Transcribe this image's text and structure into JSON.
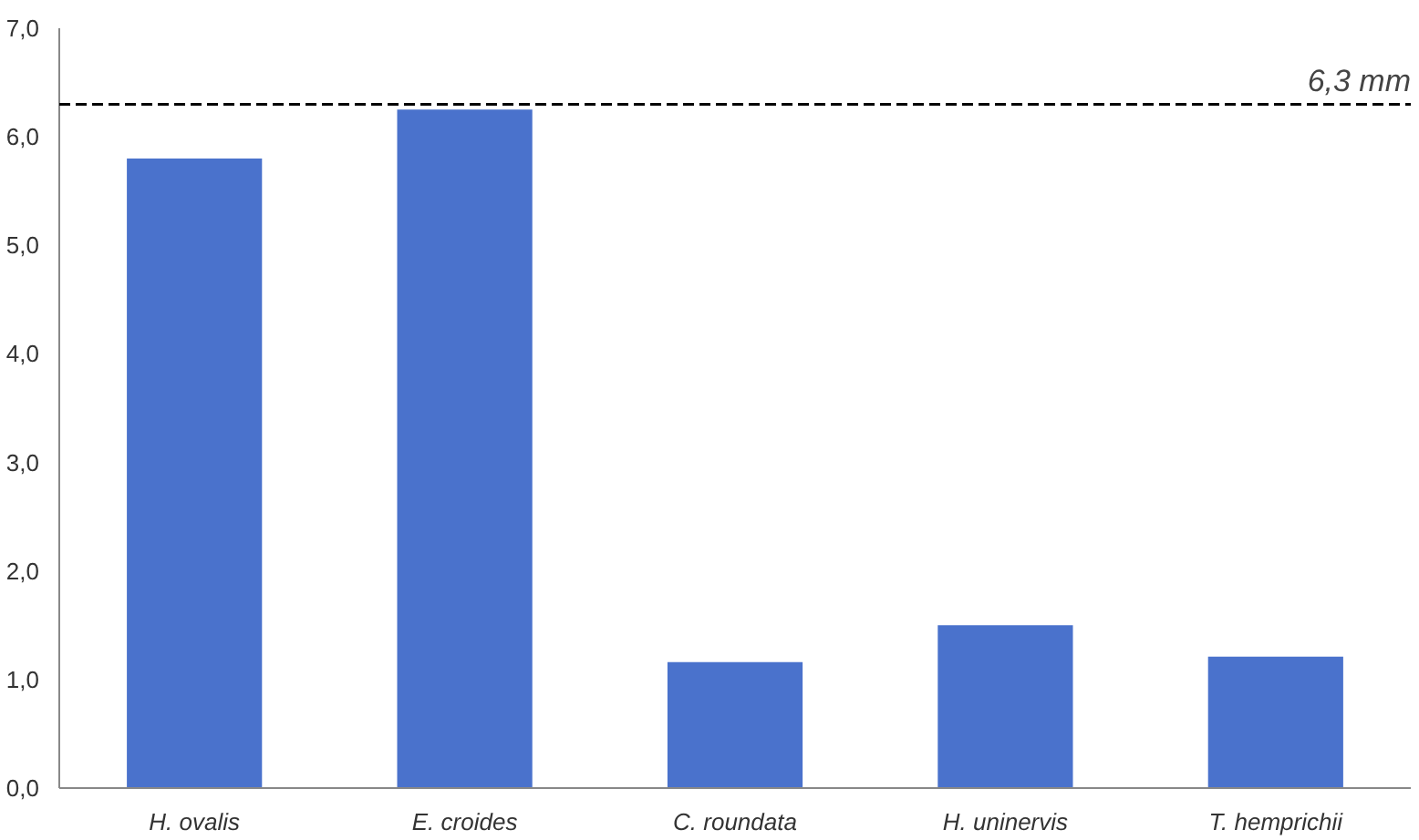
{
  "chart_data": {
    "type": "bar",
    "categories": [
      "H. ovalis",
      "E. croides",
      "C. roundata",
      "H. uninervis",
      "T. hemprichii"
    ],
    "values": [
      5.8,
      6.25,
      1.16,
      1.5,
      1.21
    ],
    "color": "#4a72cc",
    "ylim": [
      0,
      7
    ],
    "yticks": [
      {
        "value": 0,
        "label": "0,0"
      },
      {
        "value": 1,
        "label": "1,0"
      },
      {
        "value": 2,
        "label": "2,0"
      },
      {
        "value": 3,
        "label": "3,0"
      },
      {
        "value": 4,
        "label": "4,0"
      },
      {
        "value": 5,
        "label": "5,0"
      },
      {
        "value": 6,
        "label": "6,0"
      },
      {
        "value": 7,
        "label": "7,0"
      }
    ],
    "ref_lines": [
      {
        "axis": "y",
        "value": 6.3,
        "label": "6,3 mm",
        "line_style": "dashed",
        "color": "#000000"
      }
    ],
    "grid": false
  }
}
